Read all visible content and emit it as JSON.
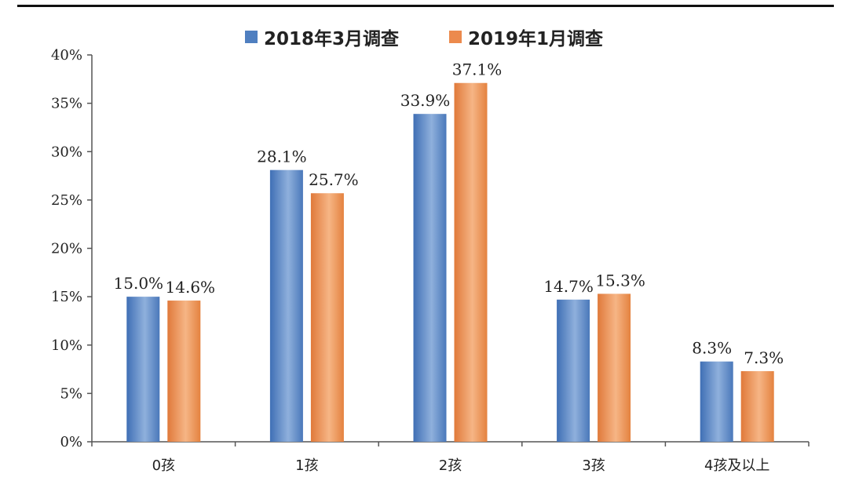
{
  "legend": {
    "series_a": "2018年3月调查",
    "series_b": "2019年1月调查"
  },
  "chart_data": {
    "type": "bar",
    "title": "",
    "xlabel": "",
    "ylabel": "",
    "categories": [
      "0孩",
      "1孩",
      "2孩",
      "3孩",
      "4孩及以上"
    ],
    "series": [
      {
        "name": "2018年3月调查",
        "values": [
          15.0,
          28.1,
          33.9,
          14.7,
          8.3
        ],
        "labels": [
          "15.0%",
          "28.1%",
          "33.9%",
          "14.7%",
          "8.3%"
        ],
        "color": "#4f7fc0"
      },
      {
        "name": "2019年1月调查",
        "values": [
          14.6,
          25.7,
          37.1,
          15.3,
          7.3
        ],
        "labels": [
          "14.6%",
          "25.7%",
          "37.1%",
          "15.3%",
          "7.3%"
        ],
        "color": "#ec8a4d"
      }
    ],
    "ylim": [
      0,
      40
    ],
    "yticks": [
      "0%",
      "5%",
      "10%",
      "15%",
      "20%",
      "25%",
      "30%",
      "35%",
      "40%"
    ],
    "grid": false,
    "legend_position": "top"
  }
}
